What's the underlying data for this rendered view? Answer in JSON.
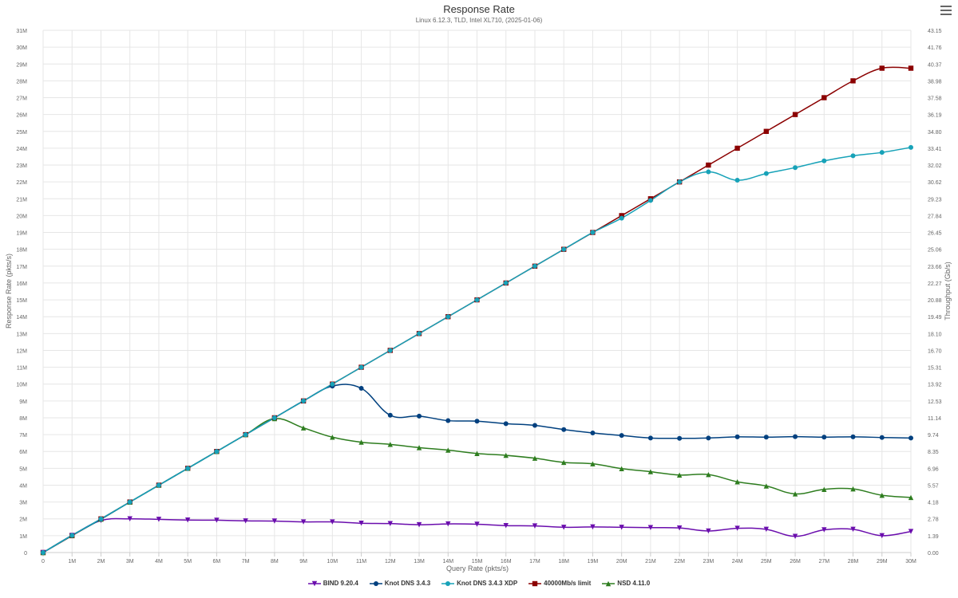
{
  "menu": {
    "icon": "hamburger-menu-icon"
  },
  "chart_data": {
    "type": "line",
    "title": "Response Rate",
    "subtitle": "Linux 6.12.3, TLD, Intel XL710, (2025-01-06)",
    "xlabel": "Query Rate (pkts/s)",
    "ylabel": "Response Rate (pkts/s)",
    "y2label": "Throughput (Gb/s)",
    "x_ticks": [
      "0",
      "1M",
      "2M",
      "3M",
      "4M",
      "5M",
      "6M",
      "7M",
      "8M",
      "9M",
      "10M",
      "11M",
      "12M",
      "13M",
      "14M",
      "15M",
      "16M",
      "17M",
      "18M",
      "19M",
      "20M",
      "21M",
      "22M",
      "23M",
      "24M",
      "25M",
      "26M",
      "27M",
      "28M",
      "29M",
      "30M"
    ],
    "y_ticks": [
      "0",
      "1M",
      "2M",
      "3M",
      "4M",
      "5M",
      "6M",
      "7M",
      "8M",
      "9M",
      "10M",
      "11M",
      "12M",
      "13M",
      "14M",
      "15M",
      "16M",
      "17M",
      "18M",
      "19M",
      "20M",
      "21M",
      "22M",
      "23M",
      "24M",
      "25M",
      "26M",
      "27M",
      "28M",
      "29M",
      "30M",
      "31M"
    ],
    "y2_ticks": [
      "0.00",
      "1.39",
      "2.78",
      "4.18",
      "5.57",
      "6.96",
      "8.35",
      "9.74",
      "11.14",
      "12.53",
      "13.92",
      "15.31",
      "16.70",
      "18.10",
      "19.49",
      "20.88",
      "22.27",
      "23.66",
      "25.06",
      "26.45",
      "27.84",
      "29.23",
      "30.62",
      "32.02",
      "33.41",
      "34.80",
      "36.19",
      "37.58",
      "38.98",
      "40.37",
      "41.76",
      "43.15"
    ],
    "xlim": [
      0,
      30
    ],
    "ylim": [
      0,
      31
    ],
    "units": "M pkts/s",
    "grid": true,
    "legend_position": "bottom",
    "x": [
      0,
      1,
      2,
      3,
      4,
      5,
      6,
      7,
      8,
      9,
      10,
      11,
      12,
      13,
      14,
      15,
      16,
      17,
      18,
      19,
      20,
      21,
      22,
      23,
      24,
      25,
      26,
      27,
      28,
      29,
      30
    ],
    "series": [
      {
        "name": "BIND 9.20.4",
        "color": "#6a0dad",
        "marker": "triangle-down",
        "values": [
          0,
          1.02,
          1.9,
          2.0,
          1.97,
          1.93,
          1.92,
          1.88,
          1.87,
          1.82,
          1.82,
          1.74,
          1.72,
          1.65,
          1.7,
          1.68,
          1.6,
          1.58,
          1.5,
          1.52,
          1.5,
          1.48,
          1.46,
          1.28,
          1.44,
          1.38,
          0.96,
          1.35,
          1.38,
          1.0,
          1.25
        ]
      },
      {
        "name": "Knot DNS 3.4.3",
        "color": "#00407f",
        "marker": "circle",
        "values": [
          0,
          1.02,
          1.98,
          3.0,
          4.0,
          5.0,
          6.0,
          7.0,
          8.0,
          9.0,
          9.88,
          9.75,
          8.15,
          8.1,
          7.83,
          7.8,
          7.65,
          7.55,
          7.3,
          7.1,
          6.95,
          6.8,
          6.78,
          6.8,
          6.87,
          6.85,
          6.88,
          6.85,
          6.87,
          6.83,
          6.8
        ]
      },
      {
        "name": "Knot DNS 3.4.3 XDP",
        "color": "#17a2b8",
        "marker": "circle",
        "values": [
          0,
          1.02,
          2.0,
          3.0,
          4.0,
          5.0,
          6.0,
          7.0,
          8.0,
          9.0,
          10.0,
          11.0,
          12.0,
          13.0,
          14.0,
          15.0,
          16.0,
          17.0,
          18.0,
          19.0,
          19.85,
          20.9,
          22.0,
          22.6,
          22.1,
          22.5,
          22.85,
          23.25,
          23.55,
          23.75,
          24.05
        ]
      },
      {
        "name": "40000Mb/s limit",
        "color": "#8b0000",
        "marker": "square",
        "values": [
          0,
          1.0,
          2.0,
          3.0,
          4.0,
          5.0,
          6.0,
          7.0,
          8.0,
          9.0,
          10.0,
          11.0,
          12.0,
          13.0,
          14.0,
          15.0,
          16.0,
          17.0,
          18.0,
          19.0,
          20.0,
          21.0,
          22.0,
          23.0,
          24.0,
          25.0,
          26.0,
          27.0,
          28.0,
          28.75,
          28.75
        ]
      },
      {
        "name": "NSD 4.11.0",
        "color": "#2e7d1f",
        "marker": "triangle",
        "values": [
          0,
          1.02,
          1.98,
          3.0,
          4.0,
          5.0,
          6.0,
          7.0,
          7.95,
          7.4,
          6.85,
          6.55,
          6.42,
          6.23,
          6.08,
          5.88,
          5.77,
          5.6,
          5.35,
          5.27,
          4.98,
          4.8,
          4.6,
          4.63,
          4.2,
          3.95,
          3.48,
          3.75,
          3.78,
          3.4,
          3.27
        ]
      }
    ]
  }
}
